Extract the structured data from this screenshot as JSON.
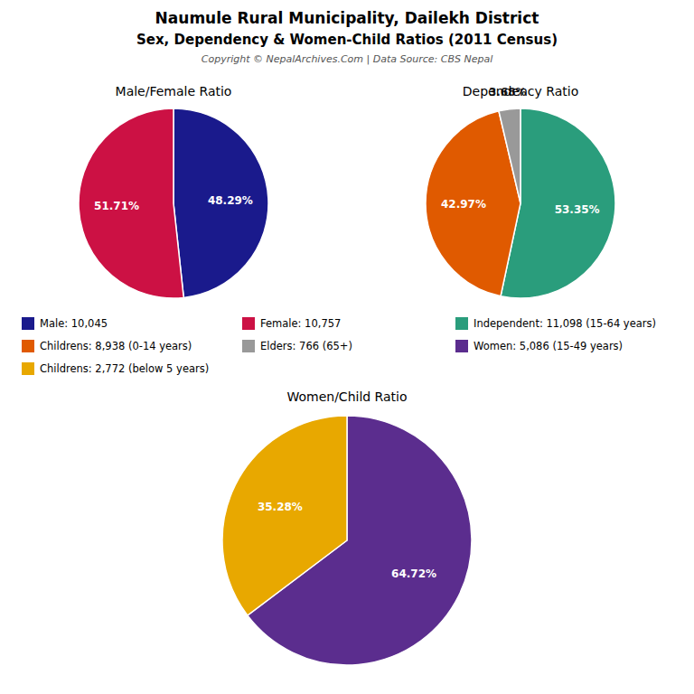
{
  "title": "Naumule Rural Municipality, Dailekh District",
  "subtitle": "Sex, Dependency & Women-Child Ratios (2011 Census)",
  "annotations": [
    "Copyright © NepalArchives.Com | Data Source: CBS Nepal"
  ],
  "chart_data": [
    {
      "type": "pie",
      "title": "Male/Female Ratio",
      "categories": [
        "Male: 10,045",
        "Female: 10,757"
      ],
      "values": [
        48.29,
        51.71
      ],
      "value_labels": [
        "48.29%",
        "51.71%"
      ],
      "colors": [
        "#1a1a8c",
        "#cc1144"
      ],
      "data_labels": true,
      "legend": "center"
    },
    {
      "type": "pie",
      "title": "Dependency Ratio",
      "categories": [
        "Independent: 11,098 (15-64 years)",
        "Childrens: 8,938 (0-14 years)",
        "Elders: 766 (65+)"
      ],
      "values": [
        53.35,
        42.97,
        3.68
      ],
      "value_labels": [
        "53.35%",
        "42.97%",
        "3.68%"
      ],
      "colors": [
        "#2a9d7c",
        "#e05a00",
        "#999999"
      ],
      "data_labels": true,
      "legend": "center"
    },
    {
      "type": "pie",
      "title": "Women/Child Ratio",
      "categories": [
        "Women: 5,086 (15-49 years)",
        "Childrens: 2,772 (below 5 years)"
      ],
      "values": [
        64.72,
        35.28
      ],
      "value_labels": [
        "64.72%",
        "35.28%"
      ],
      "colors": [
        "#5b2d8e",
        "#e8a800"
      ],
      "data_labels": true,
      "legend": "center"
    }
  ]
}
